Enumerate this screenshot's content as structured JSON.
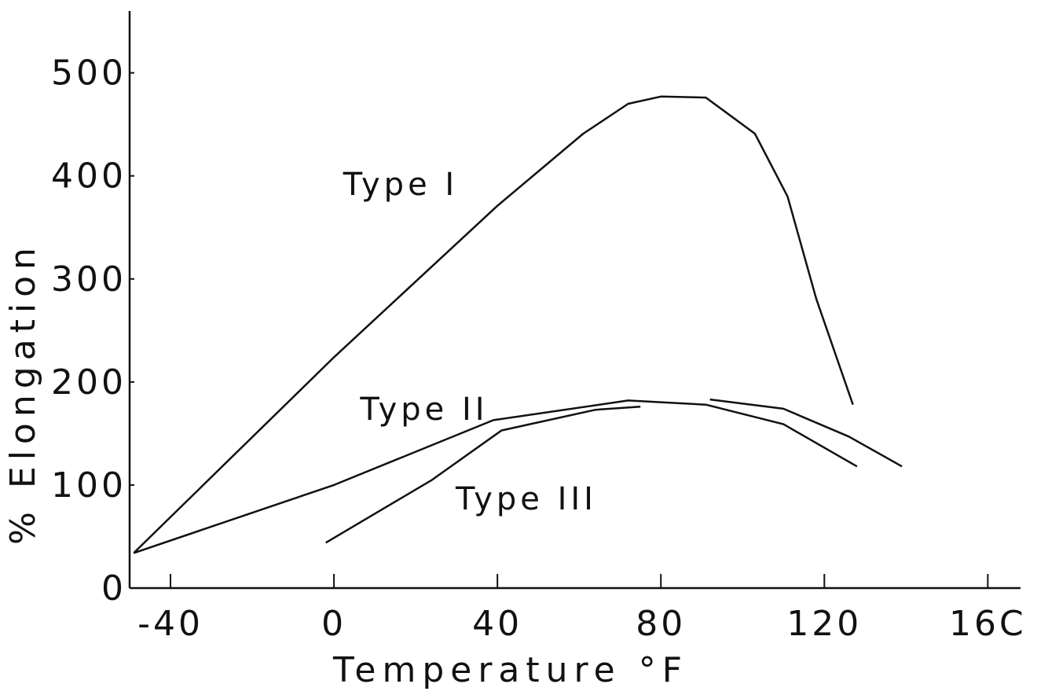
{
  "chart_data": {
    "type": "line",
    "x_label": "Temperature °F",
    "y_label": "% Elongation",
    "xlim": [
      -50,
      168
    ],
    "ylim": [
      0,
      560
    ],
    "xticks": [
      -40,
      0,
      40,
      80,
      120,
      {
        "value": 160,
        "label": "16C"
      }
    ],
    "yticks": [
      0,
      100,
      200,
      300,
      400,
      500
    ],
    "grid": false,
    "series": [
      {
        "name": "Type I",
        "color": "#111111",
        "x": [
          -49,
          0,
          40,
          61,
          72,
          80,
          91,
          103,
          111,
          118,
          127
        ],
        "values": [
          34,
          224,
          371,
          441,
          470,
          477,
          476,
          441,
          380,
          281,
          178
        ]
      },
      {
        "name": "Type II",
        "color": "#111111",
        "x": [
          -49,
          0,
          39,
          72,
          91,
          110,
          128
        ],
        "values": [
          34,
          100,
          163,
          182,
          178,
          159,
          118
        ]
      },
      {
        "name": "Type III",
        "color": "#111111",
        "x": [
          -2,
          24,
          41,
          64,
          75
        ],
        "values": [
          44,
          105,
          153,
          173,
          176
        ]
      },
      {
        "color": "#111111",
        "x": [
          92,
          110,
          126,
          139
        ],
        "values": [
          183,
          174,
          147,
          118
        ]
      }
    ]
  }
}
